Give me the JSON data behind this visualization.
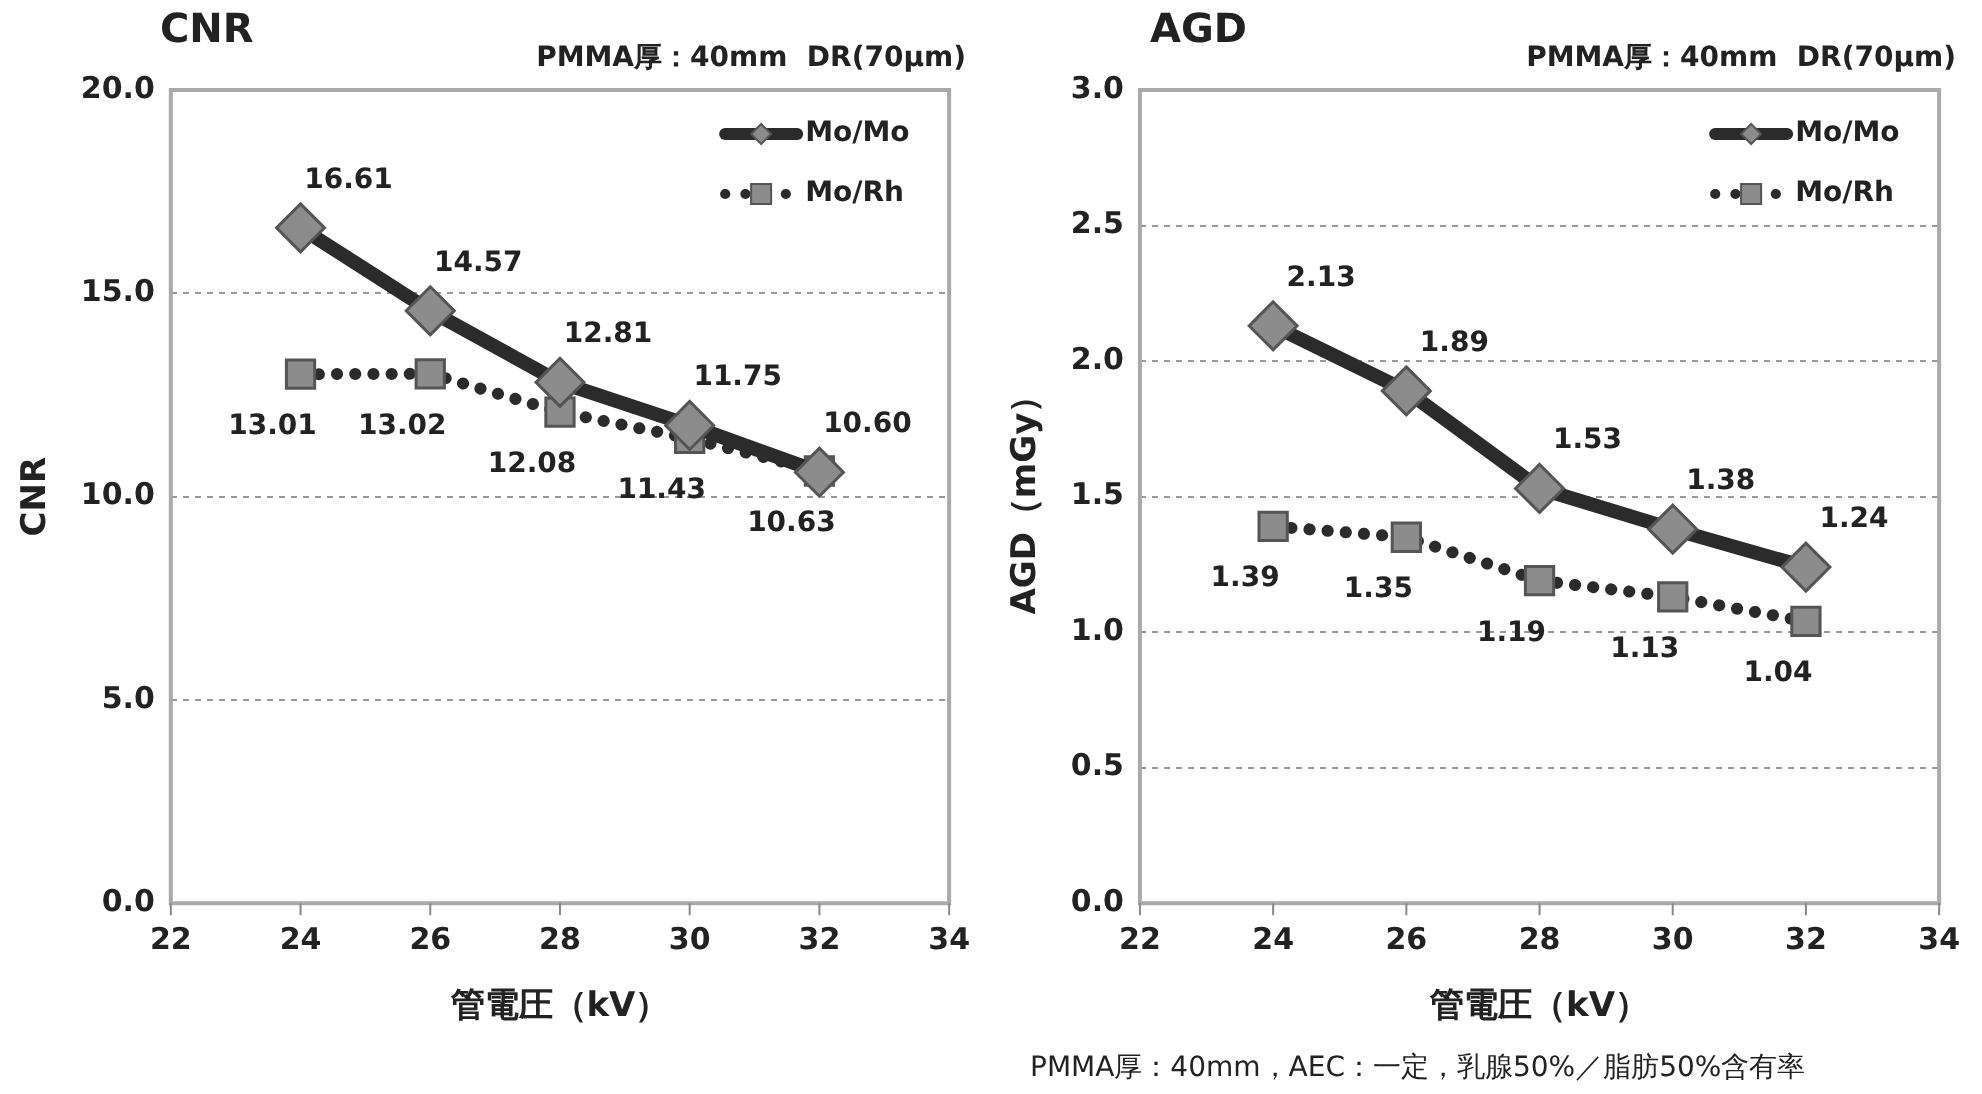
{
  "chart_data": [
    {
      "type": "line",
      "title": "CNR",
      "subtitle": "PMMA厚：40mm  DR(70μm)",
      "xlabel": "管電圧（kV）",
      "ylabel": "CNR",
      "x": [
        24,
        26,
        28,
        30,
        32
      ],
      "series": [
        {
          "name": "Mo/Mo",
          "color": "#2b2b2b",
          "marker": "diamond",
          "line_style": "solid",
          "values": [
            16.61,
            14.57,
            12.81,
            11.75,
            10.6
          ],
          "value_labels": [
            "16.61",
            "14.57",
            "12.81",
            "11.75",
            "10.60"
          ]
        },
        {
          "name": "Mo/Rh",
          "color": "#2b2b2b",
          "marker": "square",
          "line_style": "dotted",
          "values": [
            13.01,
            13.02,
            12.08,
            11.43,
            10.63
          ],
          "value_labels": [
            "13.01",
            "13.02",
            "12.08",
            "11.43",
            "10.63"
          ]
        }
      ],
      "xlim": [
        22,
        34
      ],
      "xticks": [
        22,
        24,
        26,
        28,
        30,
        32,
        34
      ],
      "ylim": [
        0,
        20
      ],
      "yticks": [
        {
          "value": 0,
          "label": "0.0"
        },
        {
          "value": 5,
          "label": "5.0"
        },
        {
          "value": 10,
          "label": "10.0"
        },
        {
          "value": 15,
          "label": "15.0"
        },
        {
          "value": 20,
          "label": "20.0"
        }
      ],
      "grid": "y",
      "legend": "top right"
    },
    {
      "type": "line",
      "title": "AGD",
      "subtitle": "PMMA厚：40mm  DR(70μm)",
      "xlabel": "管電圧（kV）",
      "ylabel": "AGD（mGy）",
      "x": [
        24,
        26,
        28,
        30,
        32
      ],
      "series": [
        {
          "name": "Mo/Mo",
          "color": "#2b2b2b",
          "marker": "diamond",
          "line_style": "solid",
          "values": [
            2.13,
            1.89,
            1.53,
            1.38,
            1.24
          ],
          "value_labels": [
            "2.13",
            "1.89",
            "1.53",
            "1.38",
            "1.24"
          ]
        },
        {
          "name": "Mo/Rh",
          "color": "#2b2b2b",
          "marker": "square",
          "line_style": "dotted",
          "values": [
            1.39,
            1.35,
            1.19,
            1.13,
            1.04
          ],
          "value_labels": [
            "1.39",
            "1.35",
            "1.19",
            "1.13",
            "1.04"
          ]
        }
      ],
      "xlim": [
        22,
        34
      ],
      "xticks": [
        22,
        24,
        26,
        28,
        30,
        32,
        34
      ],
      "ylim": [
        0,
        3
      ],
      "yticks": [
        {
          "value": 0,
          "label": "0.0"
        },
        {
          "value": 0.5,
          "label": "0.5"
        },
        {
          "value": 1,
          "label": "1.0"
        },
        {
          "value": 1.5,
          "label": "1.5"
        },
        {
          "value": 2,
          "label": "2.0"
        },
        {
          "value": 2.5,
          "label": "2.5"
        },
        {
          "value": 3,
          "label": "3.0"
        }
      ],
      "grid": "y",
      "legend": "top right",
      "annotations": [
        "PMMA厚：40mm，AEC：一定，乳腺50%／脂肪50%含有率"
      ]
    }
  ]
}
